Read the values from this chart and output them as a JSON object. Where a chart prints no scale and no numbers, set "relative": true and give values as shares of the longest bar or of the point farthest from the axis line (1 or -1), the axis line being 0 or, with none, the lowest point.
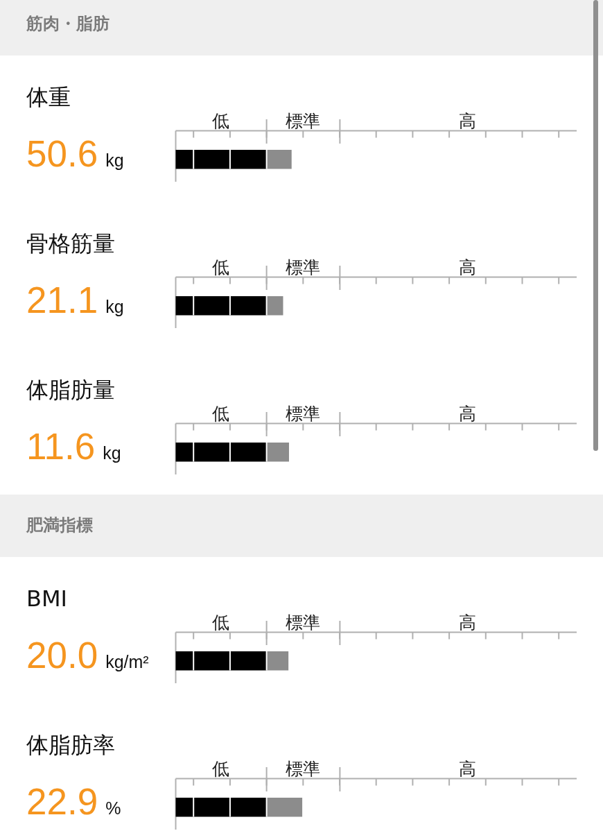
{
  "chart_data": [
    {
      "type": "other",
      "title": "筋肉・脂肪"
    },
    {
      "type": "other",
      "title": "体重",
      "subtitle": "50.6",
      "annotations": [
        "kg"
      ]
    },
    {
      "type": "bar",
      "orientation": "horizontal",
      "stacked": true,
      "relative": true,
      "categories": [
        null
      ],
      "series": [
        {
          "color": "#000000",
          "values": [
            0.784
          ]
        },
        {
          "color": "#8c8c8c",
          "values": [
            0.216
          ]
        }
      ],
      "annotations": [
        "低",
        "標準",
        "高"
      ]
    },
    {
      "type": "other",
      "title": "骨格筋量",
      "subtitle": "21.1",
      "annotations": [
        "kg"
      ]
    },
    {
      "type": "bar",
      "orientation": "horizontal",
      "stacked": true,
      "relative": true,
      "categories": [
        null
      ],
      "series": [
        {
          "color": "#000000",
          "values": [
            0.846
          ]
        },
        {
          "color": "#8c8c8c",
          "values": [
            0.154
          ]
        }
      ],
      "annotations": [
        "低",
        "標準",
        "高"
      ]
    },
    {
      "type": "other",
      "title": "体脂肪量",
      "subtitle": "11.6",
      "annotations": [
        "kg"
      ]
    },
    {
      "type": "bar",
      "orientation": "horizontal",
      "stacked": true,
      "relative": true,
      "categories": [
        null
      ],
      "series": [
        {
          "color": "#000000",
          "values": [
            0.802
          ]
        },
        {
          "color": "#8c8c8c",
          "values": [
            0.198
          ]
        }
      ],
      "annotations": [
        "低",
        "標準",
        "高"
      ]
    },
    {
      "type": "other",
      "title": "肥満指標"
    },
    {
      "type": "other",
      "title": "BMI",
      "subtitle": "20.0",
      "annotations": [
        "kg/m²"
      ]
    },
    {
      "type": "bar",
      "orientation": "horizontal",
      "stacked": true,
      "relative": true,
      "categories": [
        null
      ],
      "series": [
        {
          "color": "#000000",
          "values": [
            0.806
          ]
        },
        {
          "color": "#8c8c8c",
          "values": [
            0.194
          ]
        }
      ],
      "annotations": [
        "低",
        "標準",
        "高"
      ]
    },
    {
      "type": "other",
      "title": "体脂肪率",
      "subtitle": "22.9",
      "annotations": [
        "%"
      ]
    },
    {
      "type": "bar",
      "orientation": "horizontal",
      "stacked": true,
      "relative": true,
      "categories": [
        null
      ],
      "series": [
        {
          "color": "#000000",
          "values": [
            0.718
          ]
        },
        {
          "color": "#8c8c8c",
          "values": [
            0.282
          ]
        }
      ],
      "annotations": [
        "低",
        "標準",
        "高"
      ]
    }
  ]
}
